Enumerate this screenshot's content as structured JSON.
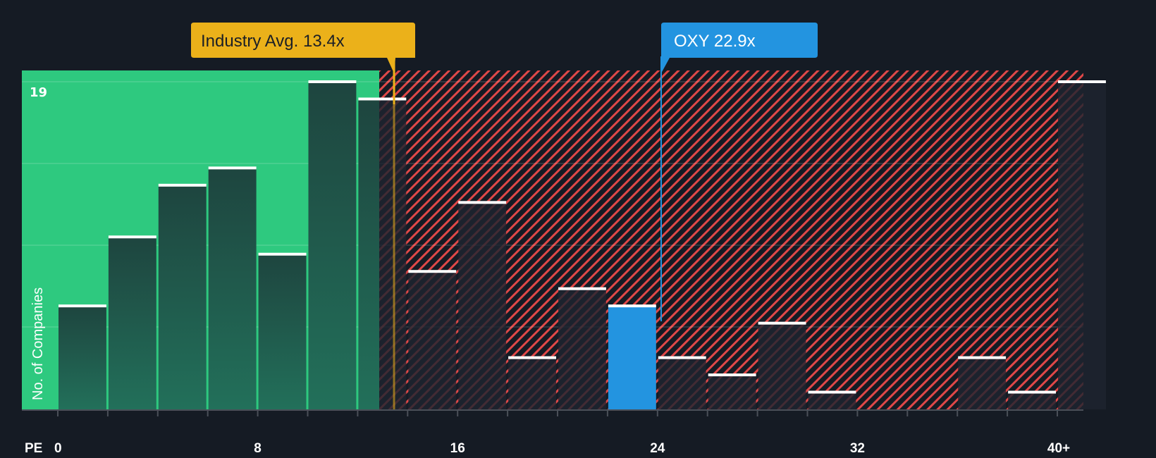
{
  "chart_data": {
    "type": "bar",
    "title": "",
    "xlabel": "PE",
    "ylabel": "No. of Companies",
    "y_max_label": "19",
    "ylim": [
      0,
      19
    ],
    "bin_width": 2,
    "categories": [
      "0-2",
      "2-4",
      "4-6",
      "6-8",
      "8-10",
      "10-12",
      "12-14",
      "14-16",
      "16-18",
      "18-20",
      "20-22",
      "22-24",
      "24-26",
      "26-28",
      "28-30",
      "30-32",
      "32-34",
      "34-36",
      "36-38",
      "38-40",
      "40+"
    ],
    "values": [
      6,
      10,
      13,
      14,
      9,
      19,
      18,
      8,
      12,
      3,
      7,
      6,
      3,
      2,
      5,
      1,
      0,
      0,
      3,
      1,
      19
    ],
    "x_ticks": [
      {
        "value": 0,
        "label": "0"
      },
      {
        "value": 8,
        "label": "8"
      },
      {
        "value": 16,
        "label": "16"
      },
      {
        "value": 24,
        "label": "24"
      },
      {
        "value": 32,
        "label": "32"
      },
      {
        "value": 40,
        "label": "40+"
      }
    ],
    "grid": true,
    "highlight_bin": "22-24",
    "annotations": [
      {
        "name": "industry-average",
        "label": "Industry Avg. 13.4x",
        "value": 13.4,
        "color": "#ebb11a"
      },
      {
        "name": "company",
        "label": "OXY 22.9x",
        "value": 22.9,
        "color": "#2394e0"
      }
    ],
    "regions": [
      {
        "name": "below-industry",
        "from": 0,
        "to": 13.4,
        "color": "#2ec97f"
      },
      {
        "name": "above-industry",
        "from": 13.4,
        "to": 41,
        "color": "#e04848",
        "pattern": "hatched"
      }
    ],
    "legend": null
  },
  "colors": {
    "background": "#151b24",
    "good_region": "#2ec97f",
    "bar_in_good": "#1f4a40",
    "bad_hatch": "#e04848",
    "highlight_bar": "#2394e0",
    "industry": "#ebb11a",
    "bar_cap": "#ffffff"
  }
}
